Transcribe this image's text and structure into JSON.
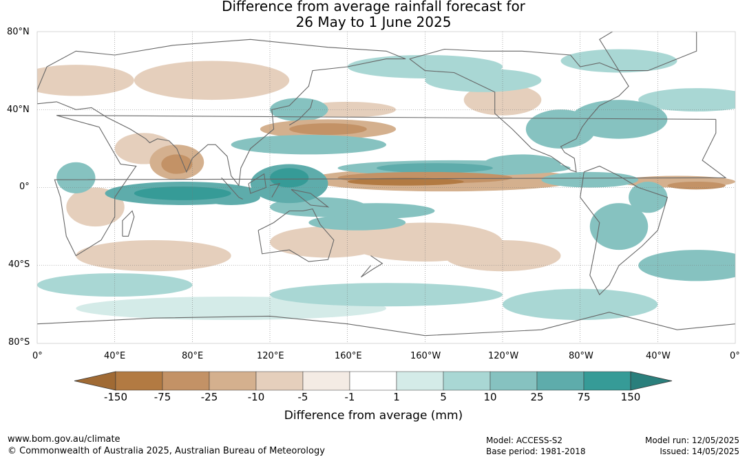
{
  "title": {
    "line1": "Difference from average rainfall forecast for",
    "line2": "26 May to 1 June 2025"
  },
  "map": {
    "lat_labels": [
      "80°N",
      "40°N",
      "0°",
      "40°S",
      "80°S"
    ],
    "lon_labels": [
      "0°",
      "40°E",
      "80°E",
      "120°E",
      "160°E",
      "160°W",
      "120°W",
      "80°W",
      "40°W",
      "0°"
    ],
    "gridlines": true,
    "projection": "equirectangular",
    "lon_range": [
      0,
      360
    ],
    "lat_range": [
      -80,
      80
    ]
  },
  "legend": {
    "title": "Difference from average (mm)",
    "ticks": [
      "-150",
      "-75",
      "-25",
      "-10",
      "-5",
      "-1",
      "1",
      "5",
      "10",
      "25",
      "75",
      "150"
    ],
    "colors": [
      "#a06a34",
      "#b27a42",
      "#c39266",
      "#d4b08e",
      "#e5cfbc",
      "#f4ebe4",
      "#ffffff",
      "#d4ebe8",
      "#a9d7d4",
      "#86c2c0",
      "#5eacab",
      "#369b97",
      "#2a7f7c"
    ]
  },
  "chart_data": {
    "type": "heatmap",
    "variable": "Difference from average rainfall",
    "units": "mm",
    "period": "26 May to 1 June 2025",
    "lat_range": [
      -80,
      80
    ],
    "lon_range": [
      0,
      360
    ],
    "bins": [
      -150,
      -75,
      -25,
      -10,
      -5,
      -1,
      1,
      5,
      10,
      25,
      75,
      150
    ],
    "major_features": [
      {
        "description": "Wet band along central Pacific ITCZ north of equator",
        "sign": "positive"
      },
      {
        "description": "Dry band across central Pacific near 5°N to 10°N",
        "sign": "negative"
      },
      {
        "description": "Wet Indian Ocean near equator",
        "sign": "positive"
      },
      {
        "description": "Dry Arabian Sea and India",
        "sign": "negative"
      },
      {
        "description": "Dry north-west Pacific near 30°N",
        "sign": "negative"
      },
      {
        "description": "Wet Maritime Continent",
        "sign": "positive"
      }
    ]
  },
  "footer": {
    "website": "www.bom.gov.au/climate",
    "copyright": "© Commonwealth of Australia 2025, Australian Bureau of Meteorology",
    "model": "Model: ACCESS-S2",
    "base_period": "Base period: 1981-2018",
    "model_run": "Model run: 12/05/2025",
    "issued": "Issued: 14/05/2025"
  }
}
